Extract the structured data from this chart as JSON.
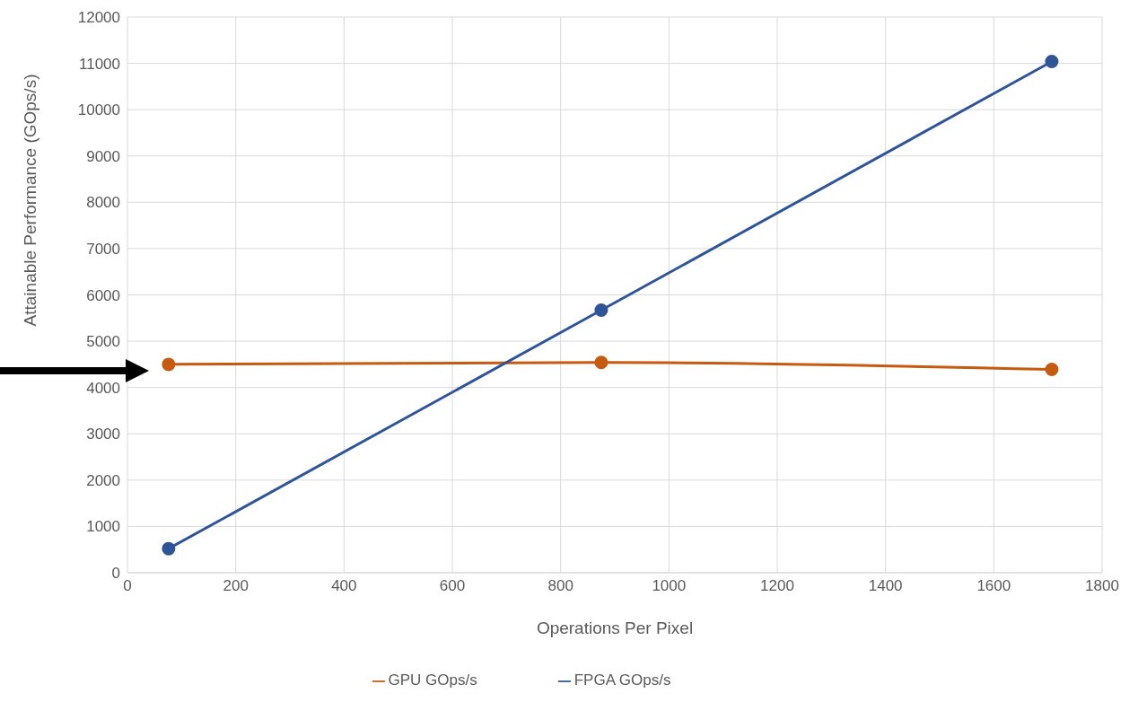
{
  "chart_data": {
    "type": "line",
    "xlabel": "Operations Per Pixel",
    "ylabel": "Attainable Performance (GOps/s)",
    "x": [
      76,
      875,
      1707
    ],
    "series": [
      {
        "name": "GPU GOps/s",
        "color": "#c55a11",
        "values": [
          4500,
          4540,
          4390
        ]
      },
      {
        "name": "FPGA GOps/s",
        "color": "#2f5597",
        "values": [
          520,
          5670,
          11040
        ]
      }
    ],
    "xlim": [
      0,
      1800
    ],
    "xticks": [
      0,
      200,
      400,
      600,
      800,
      1000,
      1200,
      1400,
      1600,
      1800
    ],
    "ylim": [
      0,
      12000
    ],
    "yticks": [
      0,
      1000,
      2000,
      3000,
      4000,
      5000,
      6000,
      7000,
      8000,
      9000,
      10000,
      11000,
      12000
    ],
    "grid": true,
    "legend": "bottom",
    "marker": "circle",
    "line_style": "solid"
  }
}
